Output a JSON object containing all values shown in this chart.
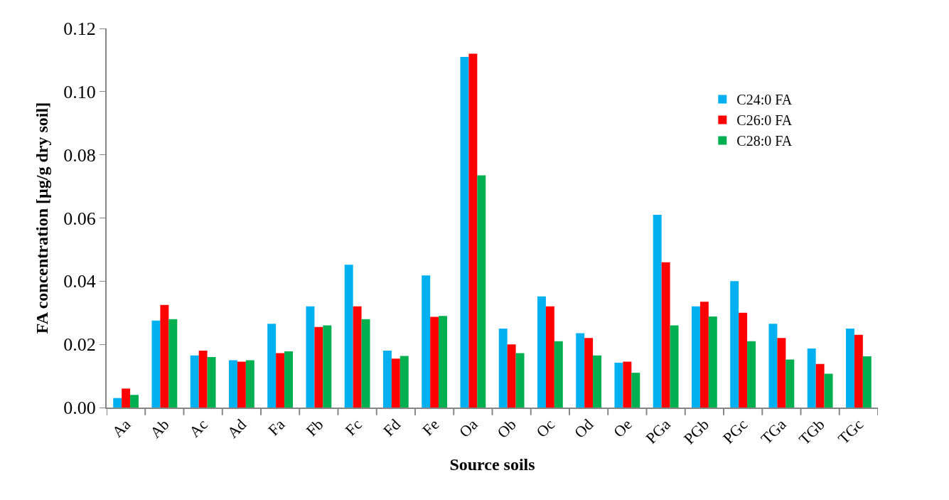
{
  "chart_data": {
    "type": "bar",
    "xlabel": "Source soils",
    "ylabel": "FA concentration [µg/g dry soil]",
    "categories": [
      "Aa",
      "Ab",
      "Ac",
      "Ad",
      "Fa",
      "Fb",
      "Fc",
      "Fd",
      "Fe",
      "Oa",
      "Ob",
      "Oc",
      "Od",
      "Oe",
      "PGa",
      "PGb",
      "PGc",
      "TGa",
      "TGb",
      "TGc"
    ],
    "series": [
      {
        "name": "C24:0 FA",
        "color": "#00b0f0",
        "values": [
          0.003,
          0.0275,
          0.0165,
          0.015,
          0.0265,
          0.032,
          0.0452,
          0.018,
          0.0418,
          0.111,
          0.025,
          0.0352,
          0.0235,
          0.0142,
          0.061,
          0.032,
          0.04,
          0.0265,
          0.0187,
          0.025
        ]
      },
      {
        "name": "C26:0 FA",
        "color": "#ff0000",
        "values": [
          0.006,
          0.0325,
          0.018,
          0.0145,
          0.0172,
          0.0255,
          0.032,
          0.0155,
          0.0287,
          0.112,
          0.02,
          0.032,
          0.022,
          0.0145,
          0.046,
          0.0335,
          0.03,
          0.022,
          0.0138,
          0.023
        ]
      },
      {
        "name": "C28:0 FA",
        "color": "#00b050",
        "values": [
          0.004,
          0.028,
          0.016,
          0.015,
          0.0178,
          0.026,
          0.028,
          0.0163,
          0.029,
          0.0735,
          0.0172,
          0.021,
          0.0165,
          0.011,
          0.026,
          0.0288,
          0.021,
          0.0152,
          0.0107,
          0.0162
        ]
      }
    ],
    "ylim": [
      0,
      0.12
    ],
    "yticks": [
      {
        "value": 0,
        "label": "0.00"
      },
      {
        "value": 0.02,
        "label": "0.02"
      },
      {
        "value": 0.04,
        "label": "0.04"
      },
      {
        "value": 0.06,
        "label": "0.06"
      },
      {
        "value": 0.08,
        "label": "0.08"
      },
      {
        "value": 0.1,
        "label": "0.10"
      },
      {
        "value": 0.12,
        "label": "0.12"
      }
    ],
    "legend": "top right"
  }
}
